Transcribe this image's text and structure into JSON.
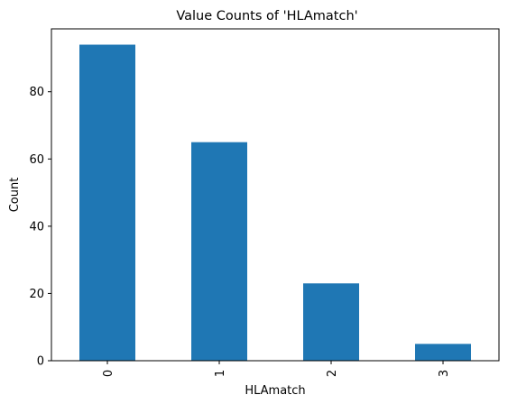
{
  "chart_data": {
    "type": "bar",
    "title": "Value Counts of 'HLAmatch'",
    "xlabel": "HLAmatch",
    "ylabel": "Count",
    "categories": [
      "0",
      "1",
      "2",
      "3"
    ],
    "values": [
      94,
      65,
      23,
      5
    ],
    "ylim": [
      0,
      98.7
    ],
    "yticks": [
      0,
      20,
      40,
      60,
      80
    ],
    "ytick_labels": [
      "0",
      "20",
      "40",
      "60",
      "80"
    ],
    "bar_color": "#1f77b4",
    "xtick_rotation": "vertical",
    "grid": false,
    "legend": "none"
  }
}
